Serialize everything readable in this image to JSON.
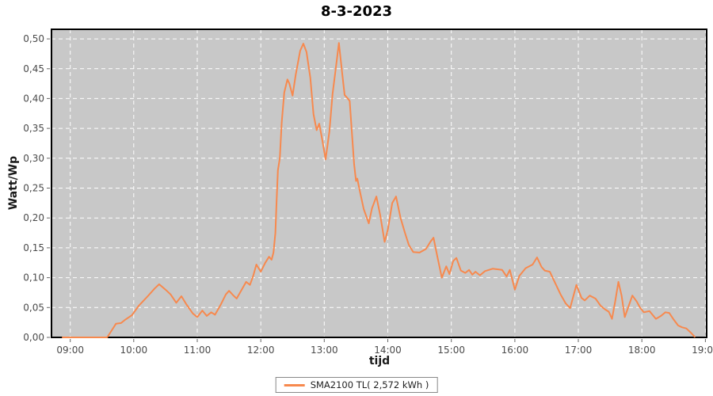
{
  "title": "8-3-2023",
  "axis": {
    "x_label": "tijd",
    "y_label": "Watt/Wp"
  },
  "legend": {
    "label": "SMA2100 TL( 2,572 kWh )",
    "swatch_color": "#f7894e"
  },
  "chart_data": {
    "type": "line",
    "title": "8-3-2023",
    "xlabel": "tijd",
    "ylabel": "Watt/Wp",
    "grid": true,
    "legend_position": "bottom-center",
    "xlim_hours": [
      8.705,
      19.02
    ],
    "ylim": [
      0,
      0.516
    ],
    "x_ticks": [
      {
        "hour": 9,
        "label": "09:00"
      },
      {
        "hour": 10,
        "label": "10:00"
      },
      {
        "hour": 11,
        "label": "11:00"
      },
      {
        "hour": 12,
        "label": "12:00"
      },
      {
        "hour": 13,
        "label": "13:00"
      },
      {
        "hour": 14,
        "label": "14:00"
      },
      {
        "hour": 15,
        "label": "15:00"
      },
      {
        "hour": 16,
        "label": "16:00"
      },
      {
        "hour": 17,
        "label": "17:00"
      },
      {
        "hour": 18,
        "label": "18:00"
      },
      {
        "hour": 19,
        "label": "19:00"
      }
    ],
    "y_ticks": [
      {
        "value": 0.0,
        "label": "0,00"
      },
      {
        "value": 0.05,
        "label": "0,05"
      },
      {
        "value": 0.1,
        "label": "0,10"
      },
      {
        "value": 0.15,
        "label": "0,15"
      },
      {
        "value": 0.2,
        "label": "0,20"
      },
      {
        "value": 0.25,
        "label": "0,25"
      },
      {
        "value": 0.3,
        "label": "0,30"
      },
      {
        "value": 0.35,
        "label": "0,35"
      },
      {
        "value": 0.4,
        "label": "0,40"
      },
      {
        "value": 0.45,
        "label": "0,45"
      },
      {
        "value": 0.5,
        "label": "0,50"
      }
    ],
    "colors": {
      "plot_bg": "#c8c8c8",
      "grid": "#ffffff",
      "border": "#000000",
      "tick_label": "#4a4a4a",
      "tick_mark": "#666666",
      "series": "#f7894e"
    },
    "series": [
      {
        "name": "SMA2100 TL( 2,572 kWh )",
        "energy_total_label": "2,572 kWh",
        "color": "#f7894e",
        "points": [
          [
            8.88,
            0.0
          ],
          [
            9.0,
            0.0
          ],
          [
            9.3,
            0.0
          ],
          [
            9.58,
            0.0
          ],
          [
            9.63,
            0.008
          ],
          [
            9.72,
            0.023
          ],
          [
            9.8,
            0.024
          ],
          [
            9.87,
            0.03
          ],
          [
            9.97,
            0.037
          ],
          [
            10.08,
            0.053
          ],
          [
            10.22,
            0.069
          ],
          [
            10.33,
            0.082
          ],
          [
            10.4,
            0.089
          ],
          [
            10.5,
            0.08
          ],
          [
            10.58,
            0.072
          ],
          [
            10.67,
            0.058
          ],
          [
            10.75,
            0.069
          ],
          [
            10.83,
            0.055
          ],
          [
            10.93,
            0.04
          ],
          [
            11.0,
            0.034
          ],
          [
            11.08,
            0.045
          ],
          [
            11.15,
            0.036
          ],
          [
            11.22,
            0.042
          ],
          [
            11.28,
            0.038
          ],
          [
            11.37,
            0.055
          ],
          [
            11.45,
            0.072
          ],
          [
            11.5,
            0.078
          ],
          [
            11.57,
            0.07
          ],
          [
            11.62,
            0.065
          ],
          [
            11.7,
            0.08
          ],
          [
            11.77,
            0.093
          ],
          [
            11.83,
            0.088
          ],
          [
            11.88,
            0.103
          ],
          [
            11.93,
            0.122
          ],
          [
            12.0,
            0.11
          ],
          [
            12.07,
            0.125
          ],
          [
            12.13,
            0.135
          ],
          [
            12.17,
            0.13
          ],
          [
            12.2,
            0.142
          ],
          [
            12.23,
            0.175
          ],
          [
            12.25,
            0.23
          ],
          [
            12.27,
            0.28
          ],
          [
            12.3,
            0.3
          ],
          [
            12.33,
            0.36
          ],
          [
            12.37,
            0.41
          ],
          [
            12.42,
            0.432
          ],
          [
            12.45,
            0.425
          ],
          [
            12.5,
            0.405
          ],
          [
            12.55,
            0.44
          ],
          [
            12.62,
            0.48
          ],
          [
            12.67,
            0.492
          ],
          [
            12.72,
            0.478
          ],
          [
            12.78,
            0.435
          ],
          [
            12.83,
            0.374
          ],
          [
            12.88,
            0.347
          ],
          [
            12.92,
            0.358
          ],
          [
            12.97,
            0.33
          ],
          [
            13.02,
            0.298
          ],
          [
            13.08,
            0.345
          ],
          [
            13.13,
            0.408
          ],
          [
            13.18,
            0.45
          ],
          [
            13.23,
            0.493
          ],
          [
            13.28,
            0.444
          ],
          [
            13.32,
            0.406
          ],
          [
            13.37,
            0.4
          ],
          [
            13.4,
            0.396
          ],
          [
            13.43,
            0.35
          ],
          [
            13.47,
            0.29
          ],
          [
            13.5,
            0.262
          ],
          [
            13.52,
            0.266
          ],
          [
            13.55,
            0.25
          ],
          [
            13.62,
            0.215
          ],
          [
            13.7,
            0.191
          ],
          [
            13.75,
            0.216
          ],
          [
            13.82,
            0.236
          ],
          [
            13.88,
            0.205
          ],
          [
            13.95,
            0.16
          ],
          [
            14.0,
            0.18
          ],
          [
            14.07,
            0.225
          ],
          [
            14.13,
            0.236
          ],
          [
            14.2,
            0.2
          ],
          [
            14.27,
            0.175
          ],
          [
            14.33,
            0.155
          ],
          [
            14.4,
            0.143
          ],
          [
            14.5,
            0.142
          ],
          [
            14.6,
            0.148
          ],
          [
            14.67,
            0.16
          ],
          [
            14.72,
            0.167
          ],
          [
            14.78,
            0.135
          ],
          [
            14.85,
            0.1
          ],
          [
            14.92,
            0.119
          ],
          [
            14.97,
            0.106
          ],
          [
            15.03,
            0.128
          ],
          [
            15.08,
            0.133
          ],
          [
            15.15,
            0.112
          ],
          [
            15.22,
            0.108
          ],
          [
            15.28,
            0.113
          ],
          [
            15.33,
            0.105
          ],
          [
            15.38,
            0.11
          ],
          [
            15.45,
            0.104
          ],
          [
            15.53,
            0.111
          ],
          [
            15.65,
            0.115
          ],
          [
            15.8,
            0.113
          ],
          [
            15.87,
            0.102
          ],
          [
            15.92,
            0.113
          ],
          [
            16.0,
            0.08
          ],
          [
            16.07,
            0.103
          ],
          [
            16.17,
            0.116
          ],
          [
            16.28,
            0.122
          ],
          [
            16.35,
            0.134
          ],
          [
            16.42,
            0.118
          ],
          [
            16.47,
            0.112
          ],
          [
            16.55,
            0.11
          ],
          [
            16.63,
            0.092
          ],
          [
            16.72,
            0.072
          ],
          [
            16.8,
            0.057
          ],
          [
            16.87,
            0.049
          ],
          [
            16.97,
            0.088
          ],
          [
            17.05,
            0.066
          ],
          [
            17.1,
            0.062
          ],
          [
            17.18,
            0.07
          ],
          [
            17.27,
            0.065
          ],
          [
            17.35,
            0.053
          ],
          [
            17.42,
            0.047
          ],
          [
            17.48,
            0.043
          ],
          [
            17.53,
            0.031
          ],
          [
            17.58,
            0.06
          ],
          [
            17.63,
            0.093
          ],
          [
            17.68,
            0.07
          ],
          [
            17.73,
            0.034
          ],
          [
            17.8,
            0.055
          ],
          [
            17.85,
            0.07
          ],
          [
            17.92,
            0.06
          ],
          [
            17.97,
            0.05
          ],
          [
            18.03,
            0.042
          ],
          [
            18.12,
            0.044
          ],
          [
            18.22,
            0.031
          ],
          [
            18.3,
            0.036
          ],
          [
            18.37,
            0.042
          ],
          [
            18.43,
            0.041
          ],
          [
            18.5,
            0.03
          ],
          [
            18.57,
            0.02
          ],
          [
            18.63,
            0.017
          ],
          [
            18.7,
            0.015
          ],
          [
            18.77,
            0.008
          ],
          [
            18.83,
            0.001
          ]
        ]
      }
    ]
  }
}
